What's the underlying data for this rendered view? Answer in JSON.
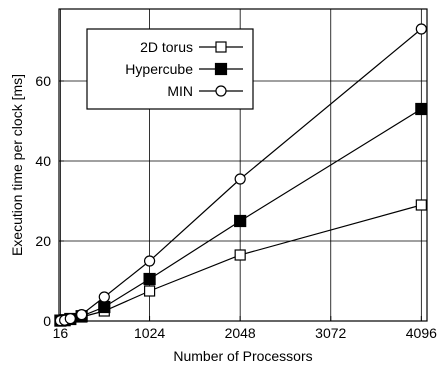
{
  "chart_data": {
    "type": "line",
    "title": "",
    "xlabel": "Number of Processors",
    "ylabel": "Execution time per clock [ms]",
    "xlim": [
      0,
      4160
    ],
    "ylim": [
      0,
      78
    ],
    "x_ticks": [
      16,
      1024,
      2048,
      3072,
      4096
    ],
    "y_ticks": [
      0,
      20,
      40,
      60
    ],
    "grid": true,
    "legend_position": "top-left",
    "x": [
      16,
      64,
      128,
      256,
      512,
      1024,
      2048,
      4096
    ],
    "series": [
      {
        "name": "2D torus",
        "marker": "open-square",
        "values": [
          0.1,
          0.2,
          0.5,
          1.0,
          2.5,
          7.5,
          16.5,
          29.0
        ]
      },
      {
        "name": "Hypercube",
        "marker": "filled-square",
        "values": [
          0.1,
          0.2,
          0.5,
          1.2,
          3.5,
          10.5,
          25.0,
          53.0
        ]
      },
      {
        "name": "MIN",
        "marker": "open-circle",
        "values": [
          0.1,
          0.2,
          0.6,
          1.6,
          6.0,
          15.0,
          35.5,
          73.0
        ]
      }
    ]
  }
}
